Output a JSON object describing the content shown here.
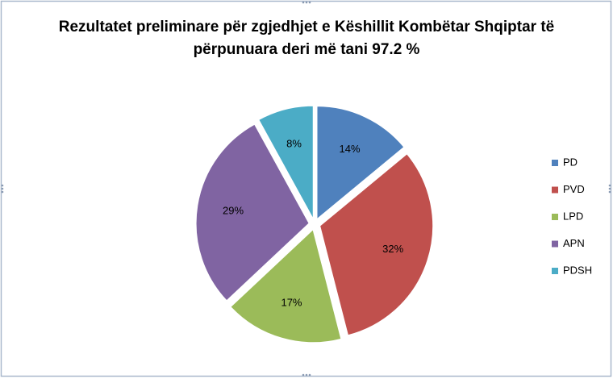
{
  "chart_data": {
    "type": "pie",
    "title": [
      "Rezultatet preliminare për zgjedhjet e Këshillit Kombëtar Shqiptar të",
      "përpunuara deri më tani 97.2 %"
    ],
    "categories": [
      "PD",
      "PVD",
      "LPD",
      "APN",
      "PDSH"
    ],
    "values": [
      14,
      32,
      17,
      29,
      8
    ],
    "value_labels": [
      "14%",
      "32%",
      "17%",
      "29%",
      "8%"
    ],
    "colors": [
      "#4f81bd",
      "#c0504d",
      "#9bbb59",
      "#8064a2",
      "#4bacc6"
    ],
    "legend": "right"
  }
}
